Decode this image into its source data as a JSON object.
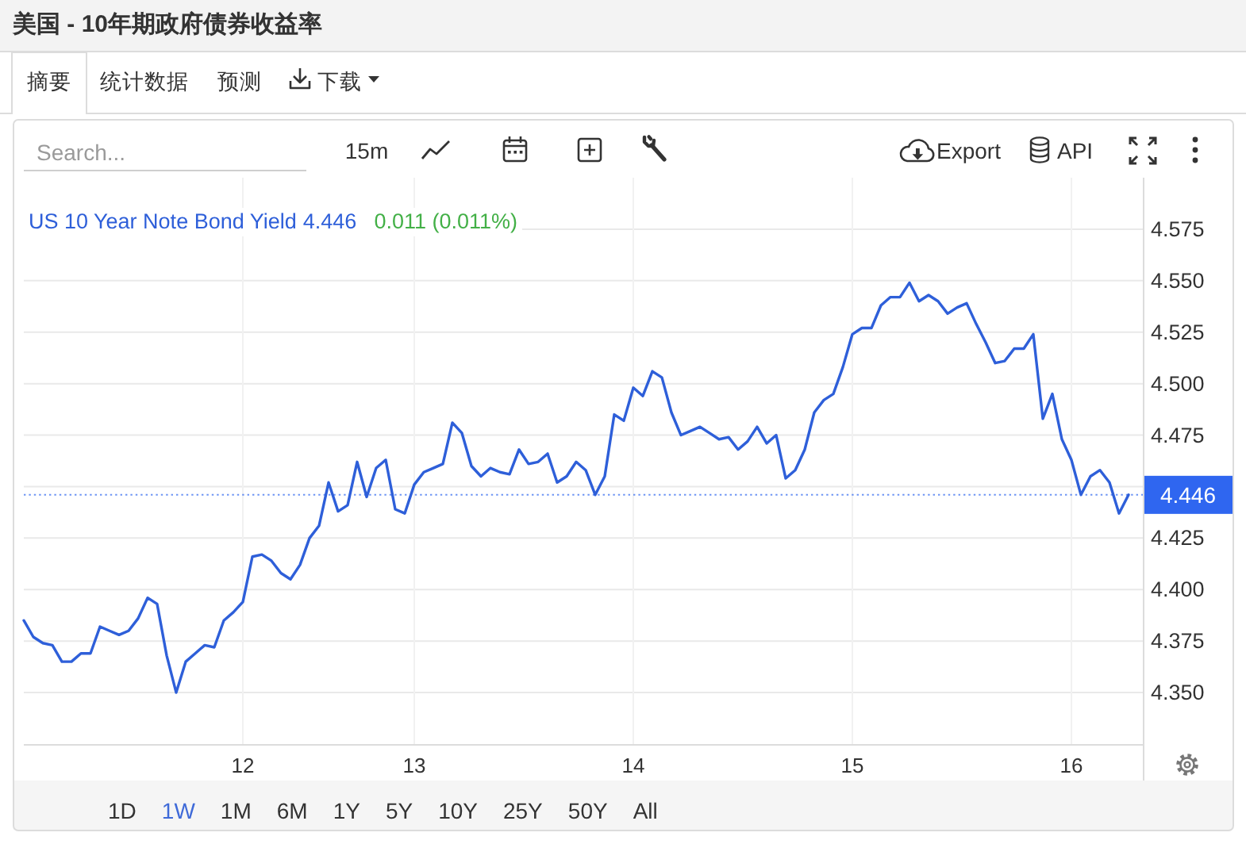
{
  "chart_data": {
    "type": "line",
    "title": "美国 - 10年期政府债券收益率",
    "categories": [
      null,
      null,
      null,
      null,
      null,
      null,
      null,
      null,
      null,
      null,
      null,
      null,
      null,
      null,
      null,
      null,
      null,
      null,
      null,
      null,
      null,
      null,
      null,
      "12",
      null,
      null,
      null,
      null,
      null,
      null,
      null,
      null,
      null,
      null,
      null,
      null,
      null,
      null,
      null,
      null,
      null,
      "13",
      null,
      null,
      null,
      null,
      null,
      null,
      null,
      null,
      null,
      null,
      null,
      null,
      null,
      null,
      null,
      null,
      null,
      null,
      null,
      null,
      null,
      null,
      "14",
      null,
      null,
      null,
      null,
      null,
      null,
      null,
      null,
      null,
      null,
      null,
      null,
      null,
      null,
      null,
      null,
      null,
      null,
      null,
      null,
      null,
      null,
      "15",
      null,
      null,
      null,
      null,
      null,
      null,
      null,
      null,
      null,
      null,
      null,
      null,
      null,
      null,
      null,
      null,
      null,
      null,
      null,
      null,
      null,
      null,
      "16",
      null,
      null,
      null,
      null,
      null,
      null
    ],
    "series": [
      {
        "name": "US 10 Year Note Bond Yield",
        "color": "#2e5fd9",
        "values": [
          4.385,
          4.377,
          4.374,
          4.373,
          4.365,
          4.365,
          4.369,
          4.369,
          4.382,
          4.38,
          4.378,
          4.38,
          4.386,
          4.396,
          4.393,
          4.368,
          4.35,
          4.365,
          4.369,
          4.373,
          4.372,
          4.385,
          4.389,
          4.394,
          4.416,
          4.417,
          4.414,
          4.408,
          4.405,
          4.412,
          4.425,
          4.431,
          4.452,
          4.438,
          4.441,
          4.462,
          4.445,
          4.459,
          4.463,
          4.439,
          4.437,
          4.451,
          4.457,
          4.459,
          4.461,
          4.481,
          4.476,
          4.46,
          4.455,
          4.459,
          4.457,
          4.456,
          4.468,
          4.461,
          4.462,
          4.466,
          4.452,
          4.455,
          4.462,
          4.458,
          4.446,
          4.455,
          4.485,
          4.482,
          4.498,
          4.494,
          4.506,
          4.503,
          4.486,
          4.475,
          4.477,
          4.479,
          4.476,
          4.473,
          4.474,
          4.468,
          4.472,
          4.479,
          4.471,
          4.475,
          4.454,
          4.458,
          4.468,
          4.486,
          4.492,
          4.495,
          4.508,
          4.524,
          4.527,
          4.527,
          4.538,
          4.542,
          4.542,
          4.549,
          4.54,
          4.543,
          4.54,
          4.534,
          4.537,
          4.539,
          4.529,
          4.52,
          4.51,
          4.511,
          4.517,
          4.517,
          4.524,
          4.483,
          4.495,
          4.473,
          4.463,
          4.446,
          4.455,
          4.458,
          4.452,
          4.437,
          4.446
        ]
      }
    ],
    "ylim": [
      4.325,
      4.6
    ],
    "yticks": [
      {
        "value": 4.35,
        "label": "4.350"
      },
      {
        "value": 4.375,
        "label": "4.375"
      },
      {
        "value": 4.4,
        "label": "4.400"
      },
      {
        "value": 4.425,
        "label": "4.425"
      },
      {
        "value": 4.45,
        "label": null
      },
      {
        "value": 4.475,
        "label": "4.475"
      },
      {
        "value": 4.5,
        "label": "4.500"
      },
      {
        "value": 4.525,
        "label": "4.525"
      },
      {
        "value": 4.55,
        "label": "4.550"
      },
      {
        "value": 4.575,
        "label": "4.575"
      }
    ],
    "grid": true,
    "legend": "top left",
    "ref_lines": [
      {
        "axis": "y",
        "value": 4.446,
        "label": "4.446",
        "color": "#2f66f0",
        "line_style": "dotted"
      }
    ],
    "annotations": [
      "4.446",
      "0.011 (0.011%)",
      "摘要",
      "统计数据",
      "预测",
      "下载",
      "Search...",
      "15m",
      "Export",
      "API",
      "1D",
      "1W",
      "1M",
      "6M",
      "1Y",
      "5Y",
      "10Y",
      "25Y",
      "50Y",
      "All"
    ]
  }
}
